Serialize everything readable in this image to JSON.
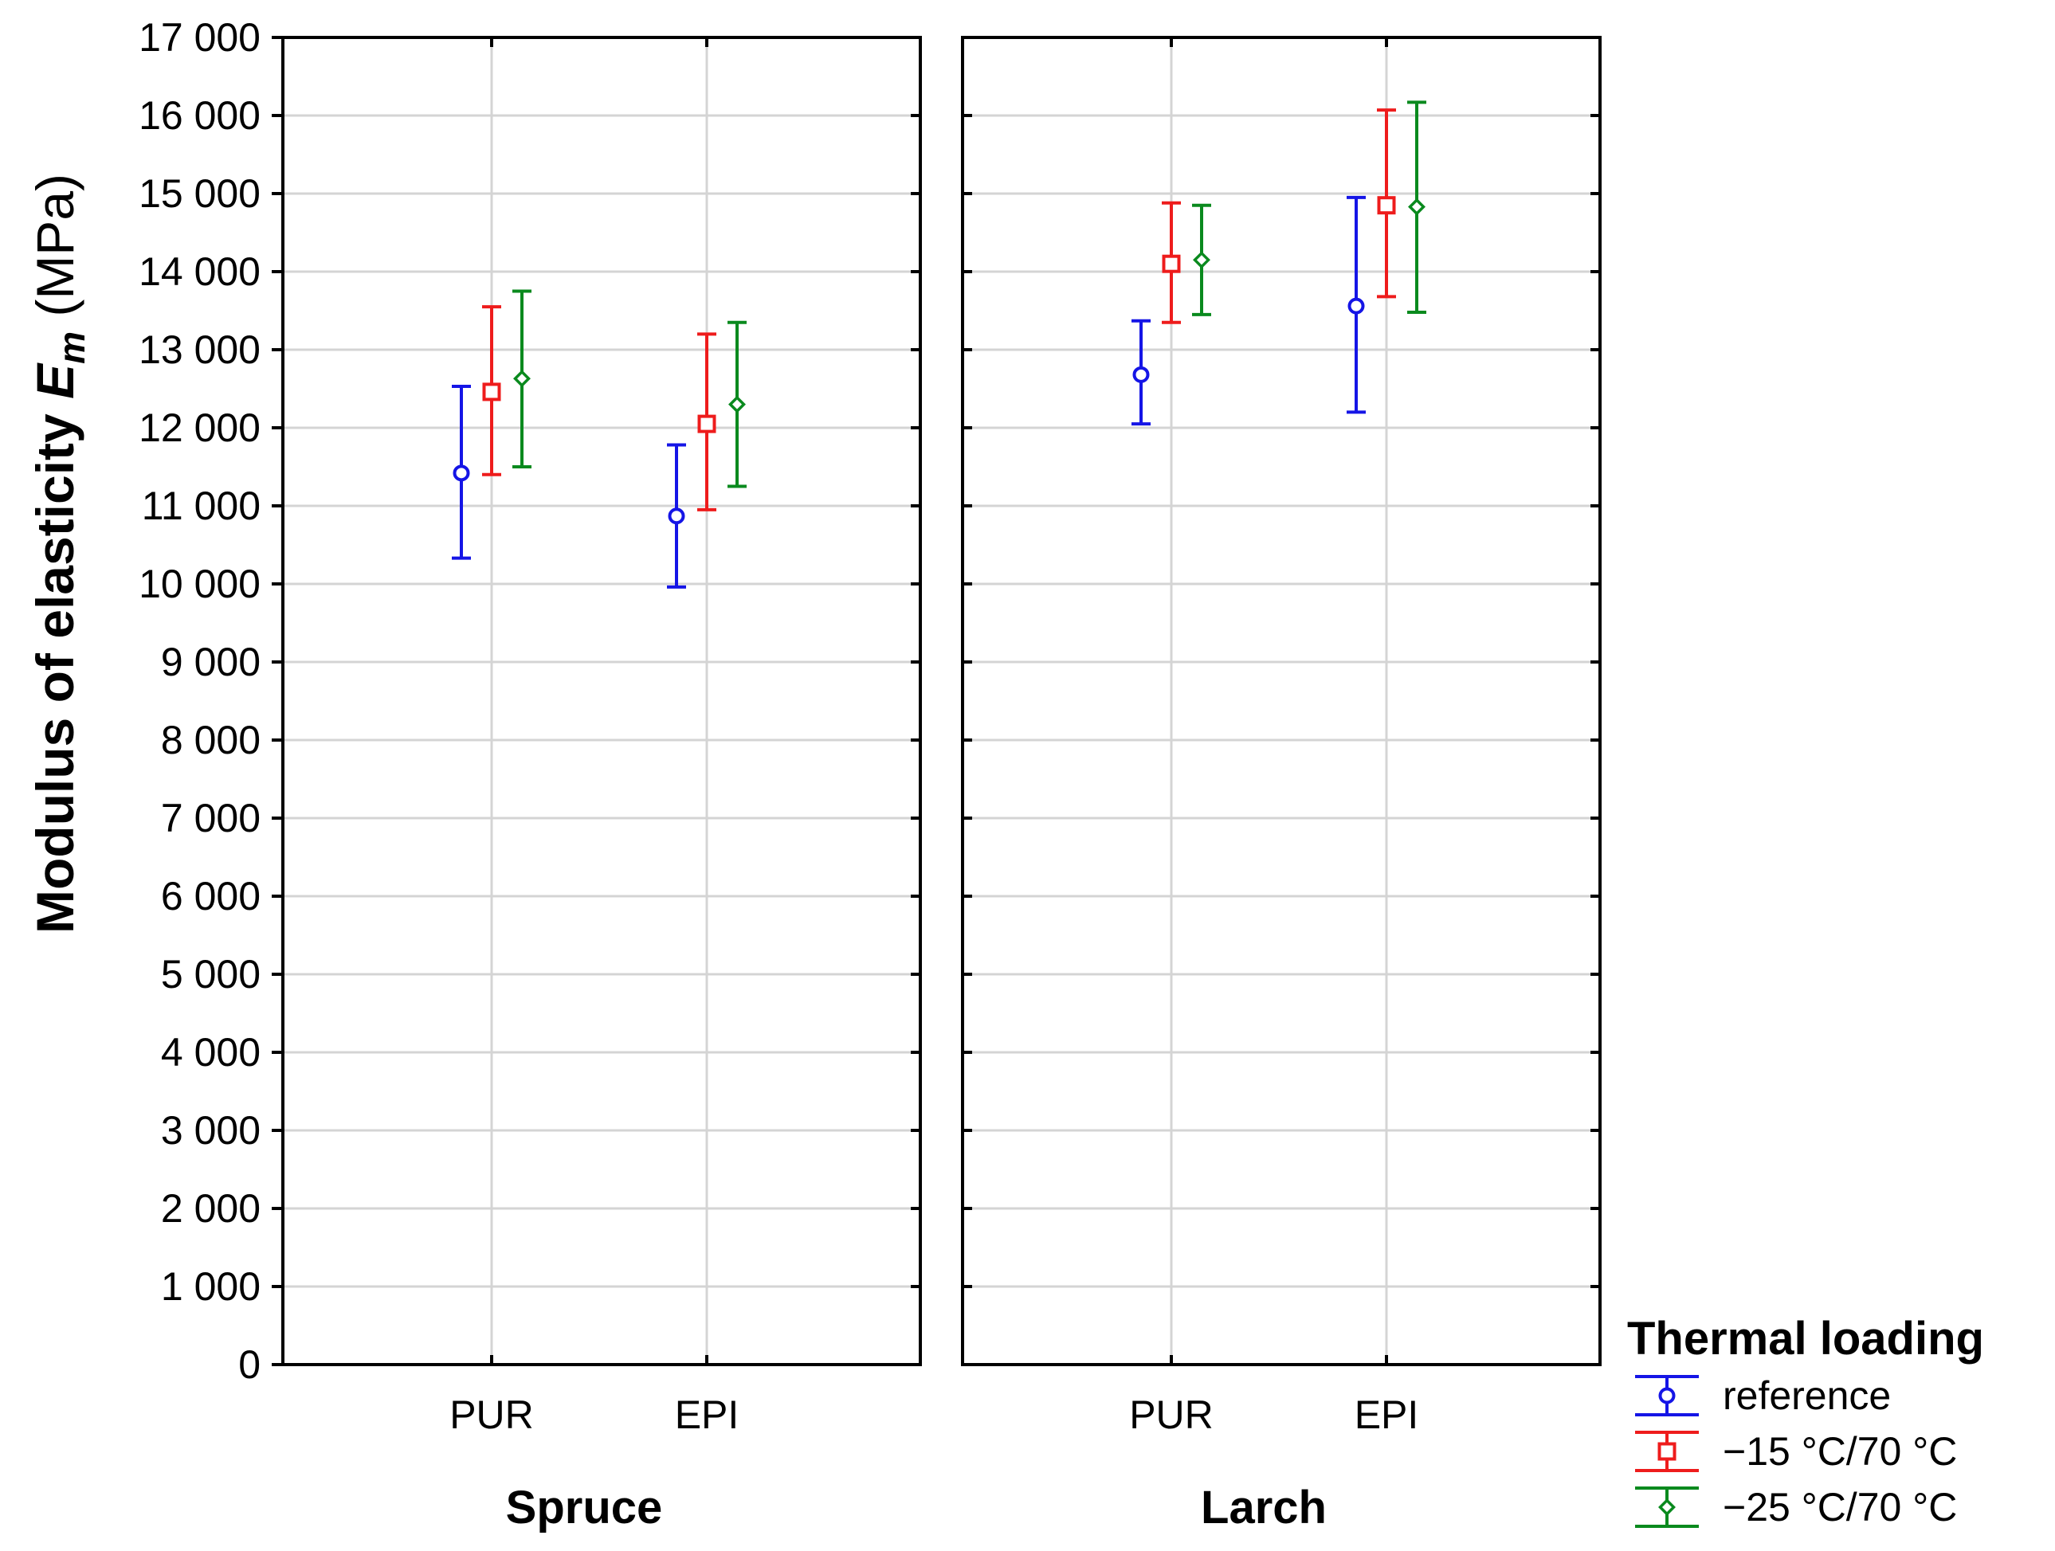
{
  "chart_data": {
    "type": "scatter",
    "subtype": "mean-with-error-bars",
    "ylabel": {
      "main": "Modulus of elasticity ",
      "symbol": "E",
      "subscript": "m",
      "unit": " (MPa)"
    },
    "ylim": [
      0,
      17000
    ],
    "yticks": [
      {
        "value": 0,
        "label": "0"
      },
      {
        "value": 1000,
        "label": "1 000"
      },
      {
        "value": 2000,
        "label": "2 000"
      },
      {
        "value": 3000,
        "label": "3 000"
      },
      {
        "value": 4000,
        "label": "4 000"
      },
      {
        "value": 5000,
        "label": "5 000"
      },
      {
        "value": 6000,
        "label": "6 000"
      },
      {
        "value": 7000,
        "label": "7 000"
      },
      {
        "value": 8000,
        "label": "8 000"
      },
      {
        "value": 9000,
        "label": "9 000"
      },
      {
        "value": 10000,
        "label": "10 000"
      },
      {
        "value": 11000,
        "label": "11 000"
      },
      {
        "value": 12000,
        "label": "12 000"
      },
      {
        "value": 13000,
        "label": "13 000"
      },
      {
        "value": 14000,
        "label": "14 000"
      },
      {
        "value": 15000,
        "label": "15 000"
      },
      {
        "value": 16000,
        "label": "16 000"
      },
      {
        "value": 17000,
        "label": "17 000"
      }
    ],
    "grid": true,
    "legend": {
      "title": "Thermal loading",
      "placement": "bottom-right",
      "entries": [
        {
          "name": "reference",
          "color": "#1515e6",
          "marker": "circle"
        },
        {
          "name": "−15 °C/70 °C",
          "color": "#ee1c1c",
          "marker": "square"
        },
        {
          "name": "−25 °C/70 °C",
          "color": "#0a8a1e",
          "marker": "diamond"
        }
      ]
    },
    "panels": [
      {
        "title": "Spruce",
        "categories": [
          "PUR",
          "EPI"
        ],
        "series": [
          {
            "name": "reference",
            "mean": [
              11420,
              10870
            ],
            "lower": [
              10330,
              9960
            ],
            "upper": [
              12530,
              11780
            ]
          },
          {
            "name": "−15 °C/70 °C",
            "mean": [
              12460,
              12050
            ],
            "lower": [
              11400,
              10950
            ],
            "upper": [
              13550,
              13200
            ]
          },
          {
            "name": "−25 °C/70 °C",
            "mean": [
              12630,
              12300
            ],
            "lower": [
              11500,
              11250
            ],
            "upper": [
              13750,
              13350
            ]
          }
        ]
      },
      {
        "title": "Larch",
        "categories": [
          "PUR",
          "EPI"
        ],
        "series": [
          {
            "name": "reference",
            "mean": [
              12680,
              13560
            ],
            "lower": [
              12050,
              12200
            ],
            "upper": [
              13370,
              14950
            ]
          },
          {
            "name": "−15 °C/70 °C",
            "mean": [
              14100,
              14850
            ],
            "lower": [
              13350,
              13680
            ],
            "upper": [
              14880,
              16070
            ]
          },
          {
            "name": "−25 °C/70 °C",
            "mean": [
              14150,
              14830
            ],
            "lower": [
              13450,
              13480
            ],
            "upper": [
              14850,
              16170
            ]
          }
        ]
      }
    ]
  }
}
